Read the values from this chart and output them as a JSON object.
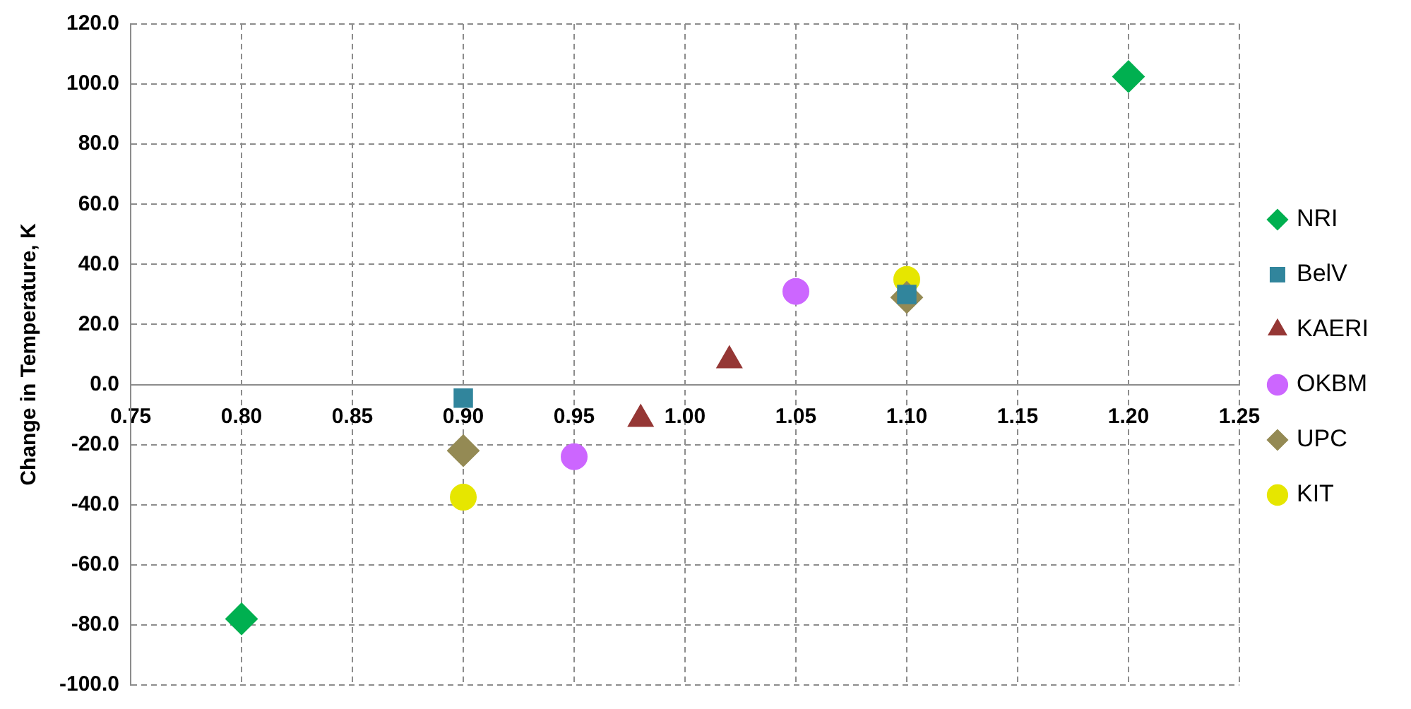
{
  "chart_data": {
    "type": "scatter",
    "ylabel": "Change in Temperature, K",
    "xlim": [
      0.75,
      1.25
    ],
    "xticks": [
      {
        "value": 0.75,
        "label": "0.75"
      },
      {
        "value": 0.8,
        "label": "0.80"
      },
      {
        "value": 0.85,
        "label": "0.85"
      },
      {
        "value": 0.9,
        "label": "0.90"
      },
      {
        "value": 0.95,
        "label": "0.95"
      },
      {
        "value": 1.0,
        "label": "1.00"
      },
      {
        "value": 1.05,
        "label": "1.05"
      },
      {
        "value": 1.1,
        "label": "1.10"
      },
      {
        "value": 1.15,
        "label": "1.15"
      },
      {
        "value": 1.2,
        "label": "1.20"
      },
      {
        "value": 1.25,
        "label": "1.25"
      }
    ],
    "ylim": [
      -100,
      120
    ],
    "yticks": [
      {
        "value": -100,
        "label": "-100.0"
      },
      {
        "value": -80,
        "label": "-80.0"
      },
      {
        "value": -60,
        "label": "-60.0"
      },
      {
        "value": -40,
        "label": "-40.0"
      },
      {
        "value": -20,
        "label": "-20.0"
      },
      {
        "value": 0,
        "label": "0.0"
      },
      {
        "value": 20,
        "label": "20.0"
      },
      {
        "value": 40,
        "label": "40.0"
      },
      {
        "value": 60,
        "label": "60.0"
      },
      {
        "value": 80,
        "label": "80.0"
      },
      {
        "value": 100,
        "label": "100.0"
      },
      {
        "value": 120,
        "label": "120.0"
      }
    ],
    "grid": true,
    "legend": "right",
    "series": [
      {
        "name": "NRI",
        "color": "#00b050",
        "marker": "diamond",
        "x": [
          0.8,
          1.2
        ],
        "values": [
          -78,
          102.5
        ]
      },
      {
        "name": "BelV",
        "color": "#31859c",
        "marker": "square",
        "x": [
          0.9,
          1.1
        ],
        "values": [
          -4.5,
          30
        ]
      },
      {
        "name": "KAERI",
        "color": "#953735",
        "marker": "triangle",
        "x": [
          0.98,
          1.02
        ],
        "values": [
          -11.5,
          8
        ]
      },
      {
        "name": "OKBM",
        "color": "#cc66ff",
        "marker": "circle",
        "x": [
          0.95,
          1.05
        ],
        "values": [
          -24,
          31
        ]
      },
      {
        "name": "UPC",
        "color": "#948a54",
        "marker": "diamond",
        "x": [
          0.9,
          1.1
        ],
        "values": [
          -22,
          29
        ]
      },
      {
        "name": "KIT",
        "color": "#e6e600",
        "marker": "circle",
        "x": [
          0.9,
          1.1
        ],
        "values": [
          -37.5,
          35
        ]
      }
    ]
  }
}
